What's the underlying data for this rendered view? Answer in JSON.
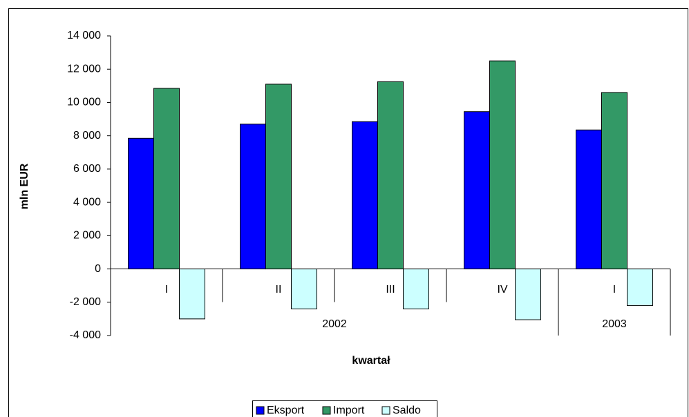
{
  "chart_data": {
    "type": "bar",
    "x_label": "kwartał",
    "y_label": "mln EUR",
    "category_groups": [
      {
        "name": "2002",
        "categories": [
          "I",
          "II",
          "III",
          "IV"
        ]
      },
      {
        "name": "2003",
        "categories": [
          "I"
        ]
      }
    ],
    "series": [
      {
        "name": "Eksport",
        "color": "#0000ff",
        "values": [
          7850,
          8700,
          8850,
          9450,
          8350
        ]
      },
      {
        "name": "Import",
        "color": "#339966",
        "values": [
          10850,
          11100,
          11250,
          12500,
          10600
        ]
      },
      {
        "name": "Saldo",
        "color": "#ccffff",
        "values": [
          -3000,
          -2400,
          -2400,
          -3050,
          -2200
        ]
      }
    ],
    "ylim": [
      -4000,
      14000
    ],
    "yticks": [
      {
        "value": -4000,
        "label": "-4 000"
      },
      {
        "value": -2000,
        "label": "-2 000"
      },
      0,
      {
        "value": 2000,
        "label": "2 000"
      },
      {
        "value": 4000,
        "label": "4 000"
      },
      {
        "value": 6000,
        "label": "6 000"
      },
      {
        "value": 8000,
        "label": "8 000"
      },
      {
        "value": 10000,
        "label": "10 000"
      },
      {
        "value": 12000,
        "label": "12 000"
      },
      {
        "value": 14000,
        "label": "14 000"
      }
    ],
    "grid": false,
    "legend": "bottom"
  }
}
